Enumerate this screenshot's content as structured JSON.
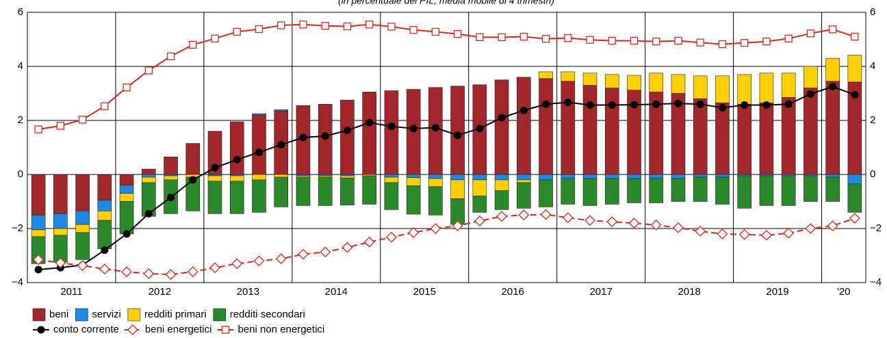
{
  "chart_data": {
    "type": "bar",
    "title": "(in percentuale del PIL; media mobile di 4 trimestri)",
    "categories": [
      "2011",
      "2011",
      "2011",
      "2011",
      "2012",
      "2012",
      "2012",
      "2012",
      "2013",
      "2013",
      "2013",
      "2013",
      "2014",
      "2014",
      "2014",
      "2014",
      "2015",
      "2015",
      "2015",
      "2015",
      "2016",
      "2016",
      "2016",
      "2016",
      "2017",
      "2017",
      "2017",
      "2017",
      "2018",
      "2018",
      "2018",
      "2018",
      "2019",
      "2019",
      "2019",
      "2019",
      "'20",
      "'20"
    ],
    "ylim": [
      -4,
      6
    ],
    "yticks": [
      {
        "value": -4,
        "label": "−4"
      },
      {
        "value": -2,
        "label": "−2"
      },
      0,
      2,
      4,
      6
    ],
    "grid": true,
    "series": [
      {
        "name": "beni",
        "type": "bar",
        "color": "#a3262b",
        "values": [
          -1.5,
          -1.45,
          -1.35,
          -0.95,
          -0.4,
          0.2,
          0.65,
          1.15,
          1.6,
          1.95,
          2.2,
          2.35,
          2.55,
          2.6,
          2.75,
          3.03,
          3.1,
          3.15,
          3.22,
          3.27,
          3.32,
          3.5,
          3.6,
          3.55,
          3.45,
          3.3,
          3.2,
          3.12,
          3.05,
          3.0,
          2.8,
          2.65,
          2.6,
          2.65,
          2.85,
          3.2,
          3.45,
          3.42
        ]
      },
      {
        "name": "servizi",
        "type": "bar",
        "color": "#1e88e5",
        "values": [
          -0.55,
          -0.55,
          -0.5,
          -0.4,
          -0.3,
          -0.1,
          -0.05,
          0,
          -0.05,
          -0.05,
          0.05,
          0.05,
          -0.05,
          -0.05,
          -0.05,
          0.02,
          -0.1,
          -0.12,
          -0.15,
          -0.2,
          -0.2,
          -0.2,
          -0.2,
          -0.2,
          -0.15,
          -0.15,
          -0.15,
          -0.15,
          -0.15,
          -0.15,
          -0.1,
          -0.1,
          -0.05,
          -0.05,
          -0.05,
          -0.05,
          -0.1,
          -0.35
        ]
      },
      {
        "name": "redditi primari",
        "type": "bar",
        "color": "#ffd000",
        "values": [
          -0.25,
          -0.25,
          -0.3,
          -0.35,
          -0.3,
          -0.2,
          -0.15,
          -0.1,
          -0.2,
          -0.2,
          -0.2,
          -0.1,
          -0.05,
          -0.05,
          -0.08,
          -0.05,
          -0.2,
          -0.3,
          -0.3,
          -0.7,
          -0.6,
          -0.4,
          -0.1,
          0.25,
          0.35,
          0.45,
          0.5,
          0.55,
          0.7,
          0.7,
          0.85,
          1.0,
          1.1,
          1.1,
          0.9,
          0.8,
          0.85,
          1.0
        ]
      },
      {
        "name": "redditi secondari",
        "type": "bar",
        "color": "#2a8a2a",
        "values": [
          -1.0,
          -1.0,
          -1.0,
          -1.05,
          -1.2,
          -1.25,
          -1.25,
          -1.25,
          -1.2,
          -1.2,
          -1.2,
          -1.1,
          -1.05,
          -1.05,
          -1.0,
          -1.05,
          -1.0,
          -1.05,
          -1.05,
          -0.95,
          -0.6,
          -0.7,
          -0.95,
          -1.0,
          -0.95,
          -1.0,
          -0.95,
          -0.9,
          -0.9,
          -0.85,
          -0.9,
          -1.0,
          -1.2,
          -1.1,
          -1.1,
          -0.95,
          -0.9,
          -1.05
        ]
      },
      {
        "name": "conto corrente",
        "type": "line",
        "marker": "circle",
        "dashed": false,
        "color": "#000000",
        "values": [
          -3.52,
          -3.45,
          -3.35,
          -2.8,
          -2.2,
          -1.45,
          -0.85,
          -0.2,
          0.25,
          0.55,
          0.82,
          1.1,
          1.37,
          1.42,
          1.63,
          1.92,
          1.78,
          1.7,
          1.73,
          1.45,
          1.7,
          2.1,
          2.37,
          2.6,
          2.67,
          2.57,
          2.57,
          2.58,
          2.6,
          2.63,
          2.6,
          2.47,
          2.57,
          2.57,
          2.6,
          2.98,
          3.25,
          2.95
        ]
      },
      {
        "name": "beni energetici",
        "type": "line",
        "marker": "diamond",
        "dashed": true,
        "color": "#e3241b",
        "values": [
          -3.15,
          -3.27,
          -3.37,
          -3.5,
          -3.6,
          -3.67,
          -3.7,
          -3.6,
          -3.45,
          -3.3,
          -3.2,
          -3.12,
          -2.95,
          -2.87,
          -2.7,
          -2.5,
          -2.32,
          -2.15,
          -2.0,
          -1.9,
          -1.72,
          -1.55,
          -1.5,
          -1.48,
          -1.6,
          -1.7,
          -1.75,
          -1.8,
          -1.87,
          -1.97,
          -2.1,
          -2.2,
          -2.22,
          -2.25,
          -2.17,
          -2.0,
          -1.9,
          -1.62
        ]
      },
      {
        "name": "beni non energetici",
        "type": "line",
        "marker": "square",
        "dashed": false,
        "color": "#e3241b",
        "values": [
          1.67,
          1.8,
          2.03,
          2.53,
          3.22,
          3.85,
          4.37,
          4.8,
          5.03,
          5.28,
          5.38,
          5.52,
          5.55,
          5.5,
          5.48,
          5.55,
          5.47,
          5.35,
          5.28,
          5.2,
          5.08,
          5.08,
          5.1,
          5.02,
          5.05,
          4.98,
          4.95,
          4.95,
          4.92,
          4.95,
          4.88,
          4.82,
          4.87,
          4.92,
          5.03,
          5.22,
          5.37,
          5.1
        ]
      }
    ]
  }
}
